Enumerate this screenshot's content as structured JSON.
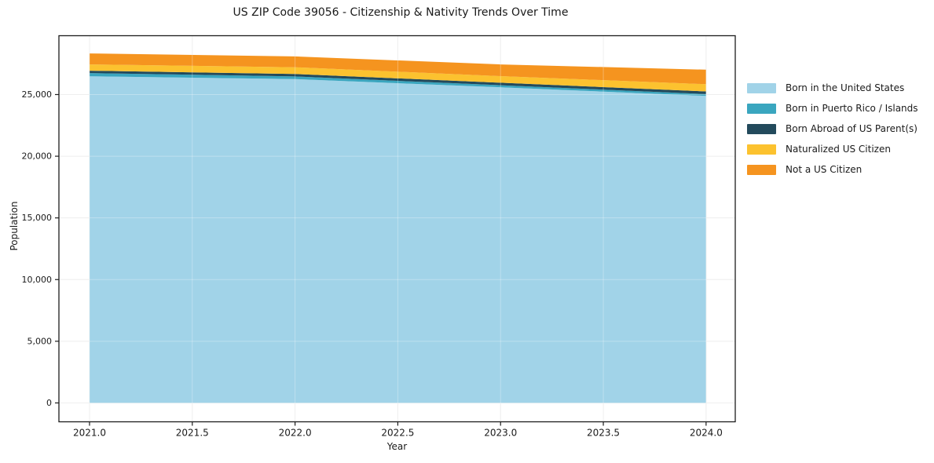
{
  "chart_data": {
    "type": "area",
    "stacked": true,
    "title": "US ZIP Code 39056 - Citizenship & Nativity Trends Over Time",
    "xlabel": "Year",
    "ylabel": "Population",
    "x": [
      2021,
      2022,
      2023,
      2024
    ],
    "series": [
      {
        "name": "Born in the United States",
        "color": "#a1d3e8",
        "values": [
          26480,
          26250,
          25590,
          24890
        ]
      },
      {
        "name": "Born in Puerto Rico / Islands",
        "color": "#3aa6bf",
        "values": [
          260,
          220,
          165,
          150
        ]
      },
      {
        "name": "Born Abroad of US Parent(s)",
        "color": "#234a5c",
        "values": [
          190,
          195,
          205,
          210
        ]
      },
      {
        "name": "Naturalized US Citizen",
        "color": "#fcc22f",
        "values": [
          510,
          545,
          535,
          590
        ]
      },
      {
        "name": "Not a US Citizen",
        "color": "#f5941f",
        "values": [
          890,
          880,
          945,
          1175
        ]
      }
    ],
    "x_ticks": {
      "values": [
        2021.0,
        2021.5,
        2022.0,
        2022.5,
        2023.0,
        2023.5,
        2024.0
      ],
      "labels": [
        "2021.0",
        "2021.5",
        "2022.0",
        "2022.5",
        "2023.0",
        "2023.5",
        "2024.0"
      ]
    },
    "y_ticks": {
      "values": [
        0,
        5000,
        10000,
        15000,
        20000,
        25000
      ],
      "labels": [
        "0",
        "5,000",
        "10,000",
        "15,000",
        "20,000",
        "25,000"
      ]
    },
    "xlim": [
      2020.851,
      2024.142
    ],
    "ylim": [
      -1530,
      29770
    ],
    "grid": true,
    "legend_position": "right",
    "style": {
      "background": "#ffffff",
      "grid_color": "#e9e9e9",
      "grid_overlay_color": "rgba(255,255,255,0.3)",
      "spine_color": "#1c1c1c",
      "tick_color": "#1c1c1c",
      "text_color": "#1a1a1a"
    }
  }
}
